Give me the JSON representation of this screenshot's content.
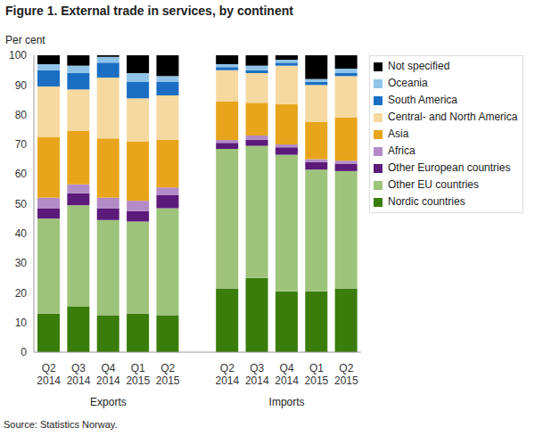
{
  "chart_data": {
    "type": "bar",
    "title": "Figure 1. External trade in services, by continent",
    "y_label": "Per cent",
    "source": "Source: Statistics Norway.",
    "stacked": true,
    "grid": false,
    "legend": "right",
    "groups": [
      "Exports",
      "Imports"
    ],
    "categories": [
      "Q2 2014",
      "Q3 2014",
      "Q4 2014",
      "Q1 2015",
      "Q2 2015",
      null,
      "Q2 2014",
      "Q3 2014",
      "Q4 2014",
      "Q1 2015",
      "Q2 2015"
    ],
    "ylim": [
      0,
      100
    ],
    "yticks": [
      0,
      10,
      20,
      30,
      40,
      50,
      60,
      70,
      80,
      90,
      100
    ],
    "series": [
      {
        "name": "Nordic countries",
        "color": "#3a7d0a",
        "values": [
          13,
          15.5,
          12.5,
          13,
          12.5,
          null,
          21.5,
          25,
          20.5,
          20.5,
          21.5
        ]
      },
      {
        "name": "Other EU countries",
        "color": "#9dc47a",
        "values": [
          32,
          34,
          32,
          31,
          36,
          null,
          47,
          44.5,
          46,
          41,
          39.5
        ]
      },
      {
        "name": "Other European countries",
        "color": "#5c1a7a",
        "values": [
          3.5,
          4,
          4,
          3.5,
          4.5,
          null,
          2,
          2,
          2.5,
          2.5,
          2.5
        ]
      },
      {
        "name": "Africa",
        "color": "#b38bc7",
        "values": [
          3.5,
          3,
          3.5,
          3.5,
          2.5,
          null,
          1,
          1.5,
          1,
          1,
          1
        ]
      },
      {
        "name": "Asia",
        "color": "#e8a51c",
        "values": [
          20.5,
          18,
          20,
          20,
          16,
          null,
          13,
          11,
          13.5,
          12.5,
          14.5
        ]
      },
      {
        "name": "Central- and North America",
        "color": "#f5d9a0",
        "values": [
          17,
          14,
          20.5,
          14.5,
          15,
          null,
          10.5,
          10,
          13,
          12.5,
          14
        ]
      },
      {
        "name": "South America",
        "color": "#1a6fc4",
        "values": [
          5.5,
          5.5,
          5,
          5.5,
          4.5,
          null,
          1,
          1,
          1,
          1,
          1
        ]
      },
      {
        "name": "Oceania",
        "color": "#8fc3e8",
        "values": [
          2,
          2.5,
          2,
          3,
          2,
          null,
          1,
          1.5,
          1,
          1,
          1.5
        ]
      },
      {
        "name": "Not specified",
        "color": "#000000",
        "values": [
          3,
          3.5,
          0.5,
          6,
          7,
          null,
          3,
          3.5,
          1.5,
          8,
          4.5
        ]
      }
    ]
  }
}
